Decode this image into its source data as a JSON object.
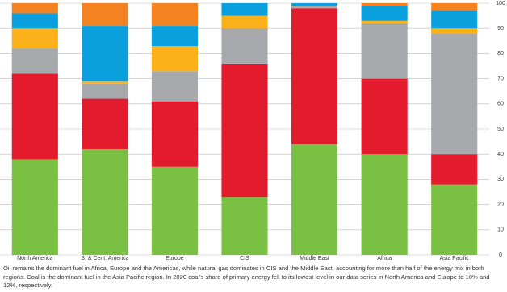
{
  "chart_data": {
    "type": "bar",
    "stacked": true,
    "categories": [
      "North America",
      "S. & Cent. America",
      "Europe",
      "CIS",
      "Middle East",
      "Africa",
      "Asia Pacific"
    ],
    "series": [
      {
        "color": "#7ac143",
        "values": [
          38,
          42,
          35,
          23,
          44,
          40,
          28
        ]
      },
      {
        "color": "#e31b2d",
        "values": [
          34,
          20,
          26,
          53,
          54,
          30,
          12
        ]
      },
      {
        "color": "#a7a9ac",
        "values": [
          10,
          6,
          12,
          14,
          1,
          22,
          48
        ]
      },
      {
        "color": "#fbb11a",
        "values": [
          8,
          1,
          10,
          5,
          0,
          1,
          2
        ]
      },
      {
        "color": "#0aa0dd",
        "values": [
          6,
          22,
          8,
          5,
          1,
          6,
          7
        ]
      },
      {
        "color": "#f58220",
        "values": [
          4,
          9,
          9,
          0,
          0,
          1,
          3
        ]
      }
    ],
    "ylim": [
      0,
      100
    ],
    "yticks": [
      0,
      10,
      20,
      30,
      40,
      50,
      60,
      70,
      80,
      90,
      100
    ],
    "grid": true,
    "caption": "Oil remains the dominant fuel in Africa, Europe and the Americas, while natural gas dominates in CIS and the Middle East, accounting for more than half of the energy mix in both regions. Coal is the dominant fuel in the Asia Pacific region. In 2020 coal's share of primary energy fell to its lowest level in our data series in North America and Europe to 10% and 12%, respectively."
  }
}
